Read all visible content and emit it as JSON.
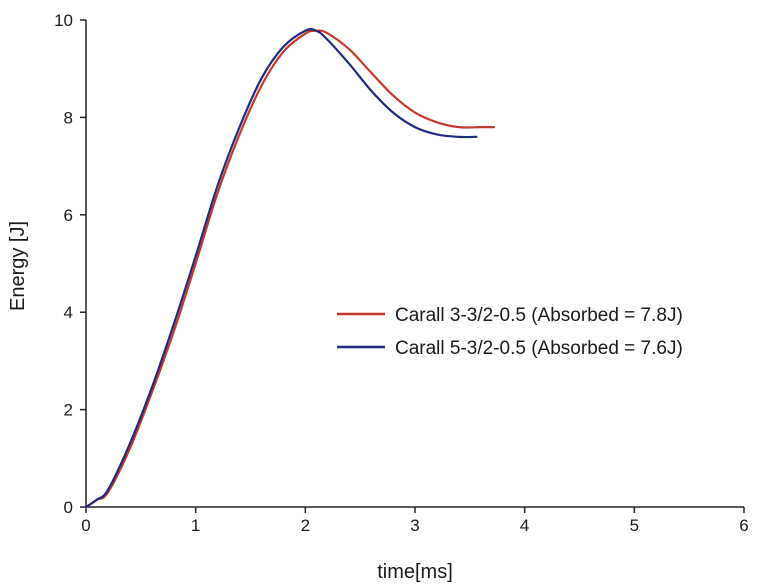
{
  "chart_data": {
    "type": "line",
    "xlabel": "time[ms]",
    "ylabel": "Energy [J]",
    "xlim": [
      0,
      6
    ],
    "ylim": [
      0,
      10
    ],
    "xticks": [
      0,
      1,
      2,
      3,
      4,
      5,
      6
    ],
    "yticks": [
      0,
      2,
      4,
      6,
      8,
      10
    ],
    "grid": false,
    "legend_position": "right",
    "series": [
      {
        "name": "Carall 3-3/2-0.5 (Absorbed = 7.8J)",
        "color": "#c0392b",
        "x": [
          0,
          0.1,
          0.2,
          0.4,
          0.6,
          0.8,
          1.0,
          1.2,
          1.4,
          1.6,
          1.8,
          2.0,
          2.1,
          2.2,
          2.4,
          2.6,
          2.8,
          3.0,
          3.2,
          3.4,
          3.6,
          3.72
        ],
        "y": [
          0,
          0.15,
          0.3,
          1.2,
          2.35,
          3.6,
          5.0,
          6.45,
          7.65,
          8.65,
          9.35,
          9.72,
          9.78,
          9.73,
          9.4,
          8.92,
          8.45,
          8.1,
          7.9,
          7.8,
          7.8,
          7.8
        ]
      },
      {
        "name": "Carall 5-3/2-0.5 (Absorbed = 7.6J)",
        "color": "#1f2a7a",
        "x": [
          0,
          0.1,
          0.2,
          0.4,
          0.6,
          0.8,
          1.0,
          1.2,
          1.4,
          1.6,
          1.8,
          2.0,
          2.1,
          2.2,
          2.4,
          2.6,
          2.8,
          3.0,
          3.2,
          3.4,
          3.56
        ],
        "y": [
          0,
          0.15,
          0.35,
          1.3,
          2.45,
          3.75,
          5.15,
          6.6,
          7.8,
          8.8,
          9.45,
          9.78,
          9.78,
          9.6,
          9.1,
          8.55,
          8.1,
          7.8,
          7.65,
          7.6,
          7.6
        ]
      }
    ]
  }
}
